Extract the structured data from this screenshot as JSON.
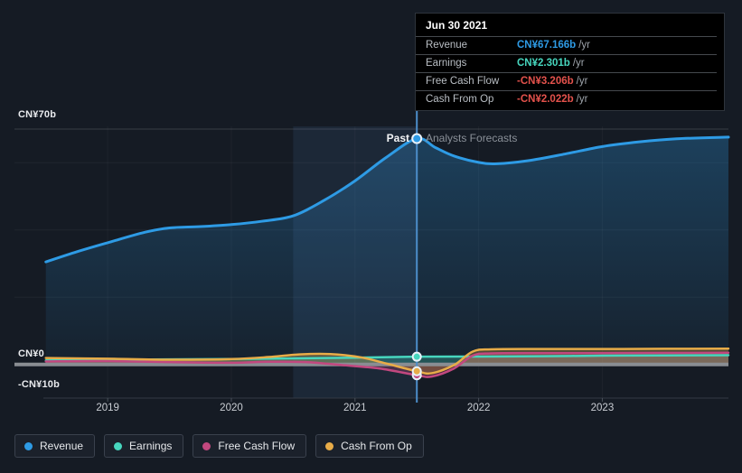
{
  "tooltip": {
    "title": "Jun 30 2021",
    "rows": [
      {
        "label": "Revenue",
        "value": "CN¥67.166b",
        "suffix": "/yr",
        "color_key": "revenue"
      },
      {
        "label": "Earnings",
        "value": "CN¥2.301b",
        "suffix": "/yr",
        "color_key": "earnings"
      },
      {
        "label": "Free Cash Flow",
        "value": "-CN¥3.206b",
        "suffix": "/yr",
        "color_key": "negative"
      },
      {
        "label": "Cash From Op",
        "value": "-CN¥2.022b",
        "suffix": "/yr",
        "color_key": "negative"
      }
    ]
  },
  "labels": {
    "past": "Past",
    "forecast": "Analysts Forecasts"
  },
  "y_axis": {
    "top": "CN¥70b",
    "zero": "CN¥0",
    "bottom": "-CN¥10b"
  },
  "x_axis": {
    "ticks": [
      "2019",
      "2020",
      "2021",
      "2022",
      "2023"
    ]
  },
  "legend": [
    {
      "label": "Revenue",
      "color_key": "revenue"
    },
    {
      "label": "Earnings",
      "color_key": "earnings"
    },
    {
      "label": "Free Cash Flow",
      "color_key": "fcf"
    },
    {
      "label": "Cash From Op",
      "color_key": "cfo"
    }
  ],
  "colors": {
    "revenue": "#2E9BE5",
    "earnings": "#47D6BE",
    "fcf": "#C2487F",
    "cfo": "#E8AC48",
    "negative": "#E4524C",
    "divider": "#4C8DC9",
    "zero_line": "#898D93",
    "band": "rgba(102,160,226,0.10)"
  },
  "chart_data": {
    "type": "line",
    "title": "Past and forecast Revenue, Earnings and Cash Flows",
    "units": "CN¥ billions per year",
    "x_range": [
      2018.48,
      2024.02
    ],
    "ylim": [
      -10,
      70.8
    ],
    "divider_x": 2021.5,
    "divider_date": "Jun 30 2021",
    "highlight_band": [
      2020.5,
      2021.5
    ],
    "grid_values": [
      20,
      40,
      60
    ],
    "top_line_value": 70,
    "legend_position": "bottom-left",
    "series": [
      {
        "name": "Revenue",
        "key": "revenue",
        "past": [
          [
            2018.5,
            30.5
          ],
          [
            2018.75,
            33.5
          ],
          [
            2019,
            36.2
          ],
          [
            2019.3,
            39.3
          ],
          [
            2019.5,
            40.6
          ],
          [
            2019.75,
            41.0
          ],
          [
            2020,
            41.6
          ],
          [
            2020.25,
            42.6
          ],
          [
            2020.5,
            44.2
          ],
          [
            2020.75,
            48.8
          ],
          [
            2021,
            54.6
          ],
          [
            2021.25,
            61.5
          ],
          [
            2021.5,
            67.166
          ]
        ],
        "forecast": [
          [
            2021.5,
            67.166
          ],
          [
            2021.65,
            64.5
          ],
          [
            2021.8,
            62.0
          ],
          [
            2022,
            60.1
          ],
          [
            2022.15,
            59.7
          ],
          [
            2022.4,
            60.6
          ],
          [
            2022.7,
            62.6
          ],
          [
            2023,
            64.8
          ],
          [
            2023.3,
            66.2
          ],
          [
            2023.6,
            67.1
          ],
          [
            2024.02,
            67.6
          ]
        ]
      },
      {
        "name": "Earnings",
        "key": "earnings",
        "past": [
          [
            2018.5,
            1.2
          ],
          [
            2019,
            1.4
          ],
          [
            2019.5,
            1.5
          ],
          [
            2020,
            1.6
          ],
          [
            2020.5,
            1.8
          ],
          [
            2021,
            2.0
          ],
          [
            2021.5,
            2.301
          ]
        ],
        "forecast": [
          [
            2021.5,
            2.301
          ],
          [
            2022,
            2.35
          ],
          [
            2022.5,
            2.45
          ],
          [
            2023,
            2.6
          ],
          [
            2023.5,
            2.7
          ],
          [
            2024.02,
            2.75
          ]
        ]
      },
      {
        "name": "Free Cash Flow",
        "key": "fcf",
        "past": [
          [
            2018.5,
            0.9
          ],
          [
            2019,
            1.0
          ],
          [
            2019.5,
            0.7
          ],
          [
            2020,
            0.5
          ],
          [
            2020.3,
            0.8
          ],
          [
            2020.6,
            0.7
          ],
          [
            2020.9,
            -0.2
          ],
          [
            2021.2,
            -1.2
          ],
          [
            2021.5,
            -3.206
          ]
        ],
        "forecast": [
          [
            2021.5,
            -3.206
          ],
          [
            2021.62,
            -3.6
          ],
          [
            2021.8,
            -1.2
          ],
          [
            2021.95,
            2.6
          ],
          [
            2022.1,
            3.3
          ],
          [
            2022.5,
            3.4
          ],
          [
            2023,
            3.4
          ],
          [
            2023.5,
            3.45
          ],
          [
            2024.02,
            3.5
          ]
        ]
      },
      {
        "name": "Cash From Op",
        "key": "cfo",
        "past": [
          [
            2018.5,
            1.9
          ],
          [
            2019,
            1.7
          ],
          [
            2019.5,
            1.4
          ],
          [
            2020,
            1.6
          ],
          [
            2020.3,
            2.2
          ],
          [
            2020.55,
            3.0
          ],
          [
            2020.8,
            3.1
          ],
          [
            2021.05,
            2.1
          ],
          [
            2021.25,
            0.3
          ],
          [
            2021.5,
            -2.022
          ]
        ],
        "forecast": [
          [
            2021.5,
            -2.022
          ],
          [
            2021.62,
            -2.6
          ],
          [
            2021.8,
            -0.2
          ],
          [
            2021.95,
            3.8
          ],
          [
            2022.1,
            4.5
          ],
          [
            2022.5,
            4.6
          ],
          [
            2023,
            4.6
          ],
          [
            2023.5,
            4.65
          ],
          [
            2024.02,
            4.7
          ]
        ]
      }
    ],
    "markers": [
      {
        "series": "revenue",
        "x": 2021.5,
        "y": 67.166
      },
      {
        "series": "earnings",
        "x": 2021.5,
        "y": 2.301
      },
      {
        "series": "fcf",
        "x": 2021.5,
        "y": -3.206
      },
      {
        "series": "cfo",
        "x": 2021.5,
        "y": -2.022
      }
    ]
  }
}
